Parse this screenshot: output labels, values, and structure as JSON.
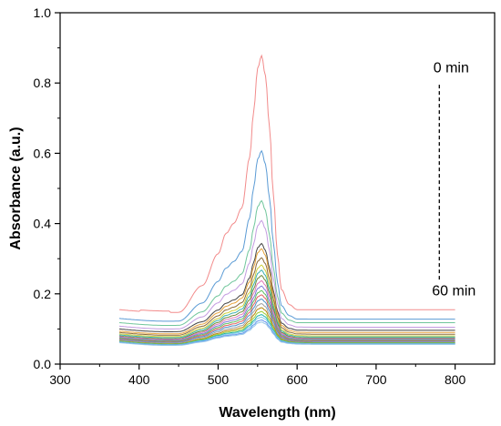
{
  "chart_data": {
    "type": "line",
    "xlabel": "Wavelength (nm)",
    "ylabel": "Absorbance (a.u.)",
    "xlim": [
      300,
      850
    ],
    "ylim": [
      0.0,
      1.0
    ],
    "x_ticks": [
      300,
      400,
      500,
      600,
      700,
      800
    ],
    "y_ticks": [
      0.0,
      0.2,
      0.4,
      0.6,
      0.8,
      1.0
    ],
    "x_tick_labels": [
      "300",
      "400",
      "500",
      "600",
      "700",
      "800"
    ],
    "y_tick_labels": [
      "0.0",
      "0.2",
      "0.4",
      "0.6",
      "0.8",
      "1.0"
    ],
    "grid": false,
    "annotations": {
      "start_label": "0 min",
      "end_label": "60 min"
    },
    "profile_x": [
      375,
      400,
      420,
      450,
      480,
      500,
      510,
      520,
      530,
      540,
      545,
      550,
      555,
      560,
      565,
      570,
      575,
      580,
      590,
      600,
      650,
      700,
      750,
      800
    ],
    "profile_shape": [
      0.0,
      0.0,
      0.0,
      0.0,
      0.1,
      0.22,
      0.3,
      0.34,
      0.4,
      0.6,
      0.78,
      0.95,
      1.0,
      0.92,
      0.72,
      0.45,
      0.22,
      0.08,
      0.02,
      0.0,
      0.0,
      0.0,
      0.0,
      0.0
    ],
    "series": [
      {
        "baseline": 0.155,
        "peak": 0.878,
        "tail": 0.155,
        "color": "#f28b8b"
      },
      {
        "baseline": 0.13,
        "peak": 0.608,
        "tail": 0.128,
        "color": "#5b9bd5"
      },
      {
        "baseline": 0.118,
        "peak": 0.465,
        "tail": 0.118,
        "color": "#70c69b"
      },
      {
        "baseline": 0.108,
        "peak": 0.41,
        "tail": 0.105,
        "color": "#c39be0"
      },
      {
        "baseline": 0.1,
        "peak": 0.345,
        "tail": 0.096,
        "color": "#444444"
      },
      {
        "baseline": 0.094,
        "peak": 0.33,
        "tail": 0.09,
        "color": "#e7a23a"
      },
      {
        "baseline": 0.09,
        "peak": 0.305,
        "tail": 0.085,
        "color": "#8c6a3a"
      },
      {
        "baseline": 0.086,
        "peak": 0.285,
        "tail": 0.08,
        "color": "#cfcf3a"
      },
      {
        "baseline": 0.083,
        "peak": 0.27,
        "tail": 0.077,
        "color": "#3ab0b0"
      },
      {
        "baseline": 0.08,
        "peak": 0.255,
        "tail": 0.074,
        "color": "#6a8a3a"
      },
      {
        "baseline": 0.078,
        "peak": 0.24,
        "tail": 0.072,
        "color": "#e27ab8"
      },
      {
        "baseline": 0.076,
        "peak": 0.225,
        "tail": 0.07,
        "color": "#7a7ad8"
      },
      {
        "baseline": 0.074,
        "peak": 0.212,
        "tail": 0.068,
        "color": "#5fbf5f"
      },
      {
        "baseline": 0.072,
        "peak": 0.2,
        "tail": 0.066,
        "color": "#e06060"
      },
      {
        "baseline": 0.07,
        "peak": 0.188,
        "tail": 0.064,
        "color": "#4a90c9"
      },
      {
        "baseline": 0.068,
        "peak": 0.175,
        "tail": 0.062,
        "color": "#a0a0a0"
      },
      {
        "baseline": 0.066,
        "peak": 0.163,
        "tail": 0.061,
        "color": "#b8860b"
      },
      {
        "baseline": 0.065,
        "peak": 0.152,
        "tail": 0.06,
        "color": "#9acd32"
      },
      {
        "baseline": 0.064,
        "peak": 0.143,
        "tail": 0.059,
        "color": "#20b2aa"
      },
      {
        "baseline": 0.063,
        "peak": 0.136,
        "tail": 0.058,
        "color": "#87ceeb"
      },
      {
        "baseline": 0.062,
        "peak": 0.128,
        "tail": 0.057,
        "color": "#6495ed"
      },
      {
        "baseline": 0.061,
        "peak": 0.122,
        "tail": 0.056,
        "color": "#98c8e8"
      }
    ]
  }
}
